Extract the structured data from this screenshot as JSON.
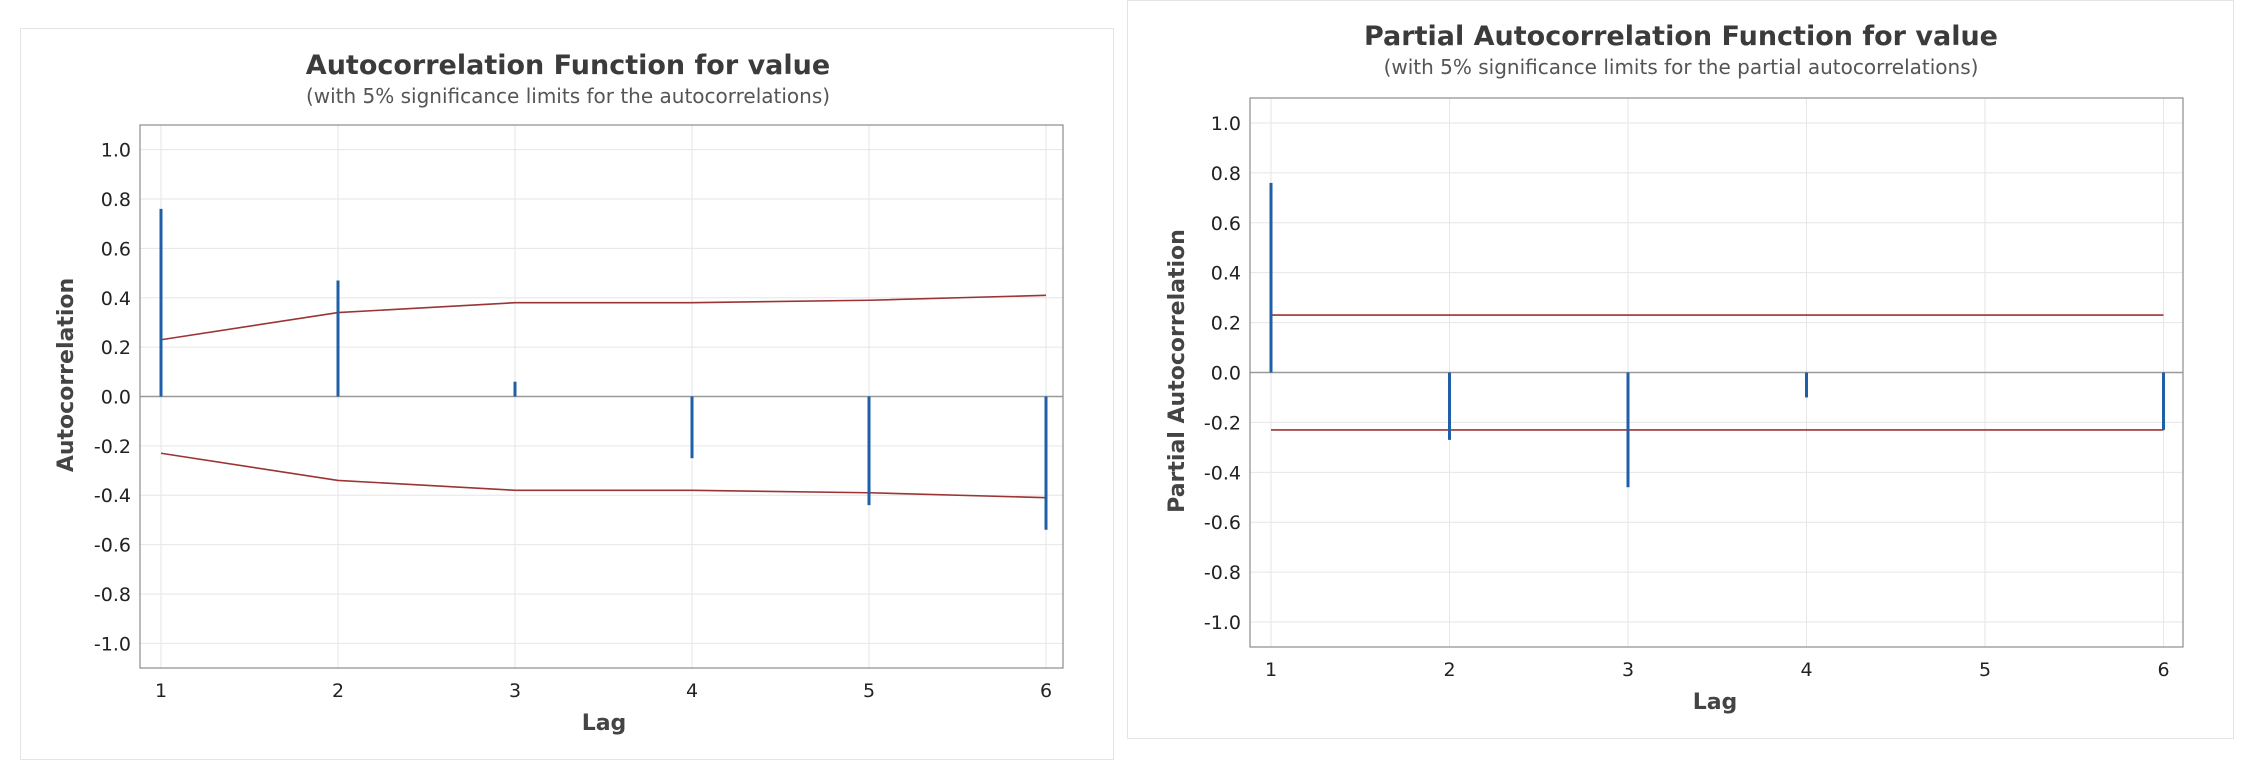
{
  "colors": {
    "bar": "#1f5fa8",
    "limit": "#9b3434",
    "grid": "#e6e6e6",
    "frame": "#8c8c8c",
    "zero_line": "#9a9a9a"
  },
  "chart_data": [
    {
      "type": "bar",
      "title": "Autocorrelation Function for value",
      "subtitle": "(with 5% significance limits for the autocorrelations)",
      "xlabel": "Lag",
      "ylabel": "Autocorrelation",
      "x": [
        1,
        2,
        3,
        4,
        5,
        6
      ],
      "x_tick_labels": [
        "1",
        "2",
        "3",
        "4",
        "5",
        "6"
      ],
      "ylim": [
        -1.1,
        1.1
      ],
      "y_ticks": [
        -1.0,
        -0.8,
        -0.6,
        -0.4,
        -0.2,
        0.0,
        0.2,
        0.4,
        0.6,
        0.8,
        1.0
      ],
      "y_tick_labels": [
        "-1.0",
        "-0.8",
        "-0.6",
        "-0.4",
        "-0.2",
        "0.0",
        "0.2",
        "0.4",
        "0.6",
        "0.8",
        "1.0"
      ],
      "values": [
        0.76,
        0.47,
        0.06,
        -0.25,
        -0.44,
        -0.54
      ],
      "significance_limits": {
        "upper": [
          0.23,
          0.34,
          0.38,
          0.38,
          0.39,
          0.41
        ],
        "lower": [
          -0.23,
          -0.34,
          -0.38,
          -0.38,
          -0.39,
          -0.41
        ]
      },
      "grid": true
    },
    {
      "type": "bar",
      "title": "Partial Autocorrelation Function for value",
      "subtitle": "(with 5% significance limits for the partial autocorrelations)",
      "xlabel": "Lag",
      "ylabel": "Partial Autocorrelation",
      "x": [
        1,
        2,
        3,
        4,
        5,
        6
      ],
      "x_tick_labels": [
        "1",
        "2",
        "3",
        "4",
        "5",
        "6"
      ],
      "ylim": [
        -1.1,
        1.1
      ],
      "y_ticks": [
        -1.0,
        -0.8,
        -0.6,
        -0.4,
        -0.2,
        0.0,
        0.2,
        0.4,
        0.6,
        0.8,
        1.0
      ],
      "y_tick_labels": [
        "-1.0",
        "-0.8",
        "-0.6",
        "-0.4",
        "-0.2",
        "0.0",
        "0.2",
        "0.4",
        "0.6",
        "0.8",
        "1.0"
      ],
      "values": [
        0.76,
        -0.27,
        -0.46,
        -0.1,
        0.0,
        -0.23
      ],
      "significance_limits": {
        "upper": [
          0.23,
          0.23,
          0.23,
          0.23,
          0.23,
          0.23
        ],
        "lower": [
          -0.23,
          -0.23,
          -0.23,
          -0.23,
          -0.23,
          -0.23
        ]
      },
      "grid": true
    }
  ]
}
